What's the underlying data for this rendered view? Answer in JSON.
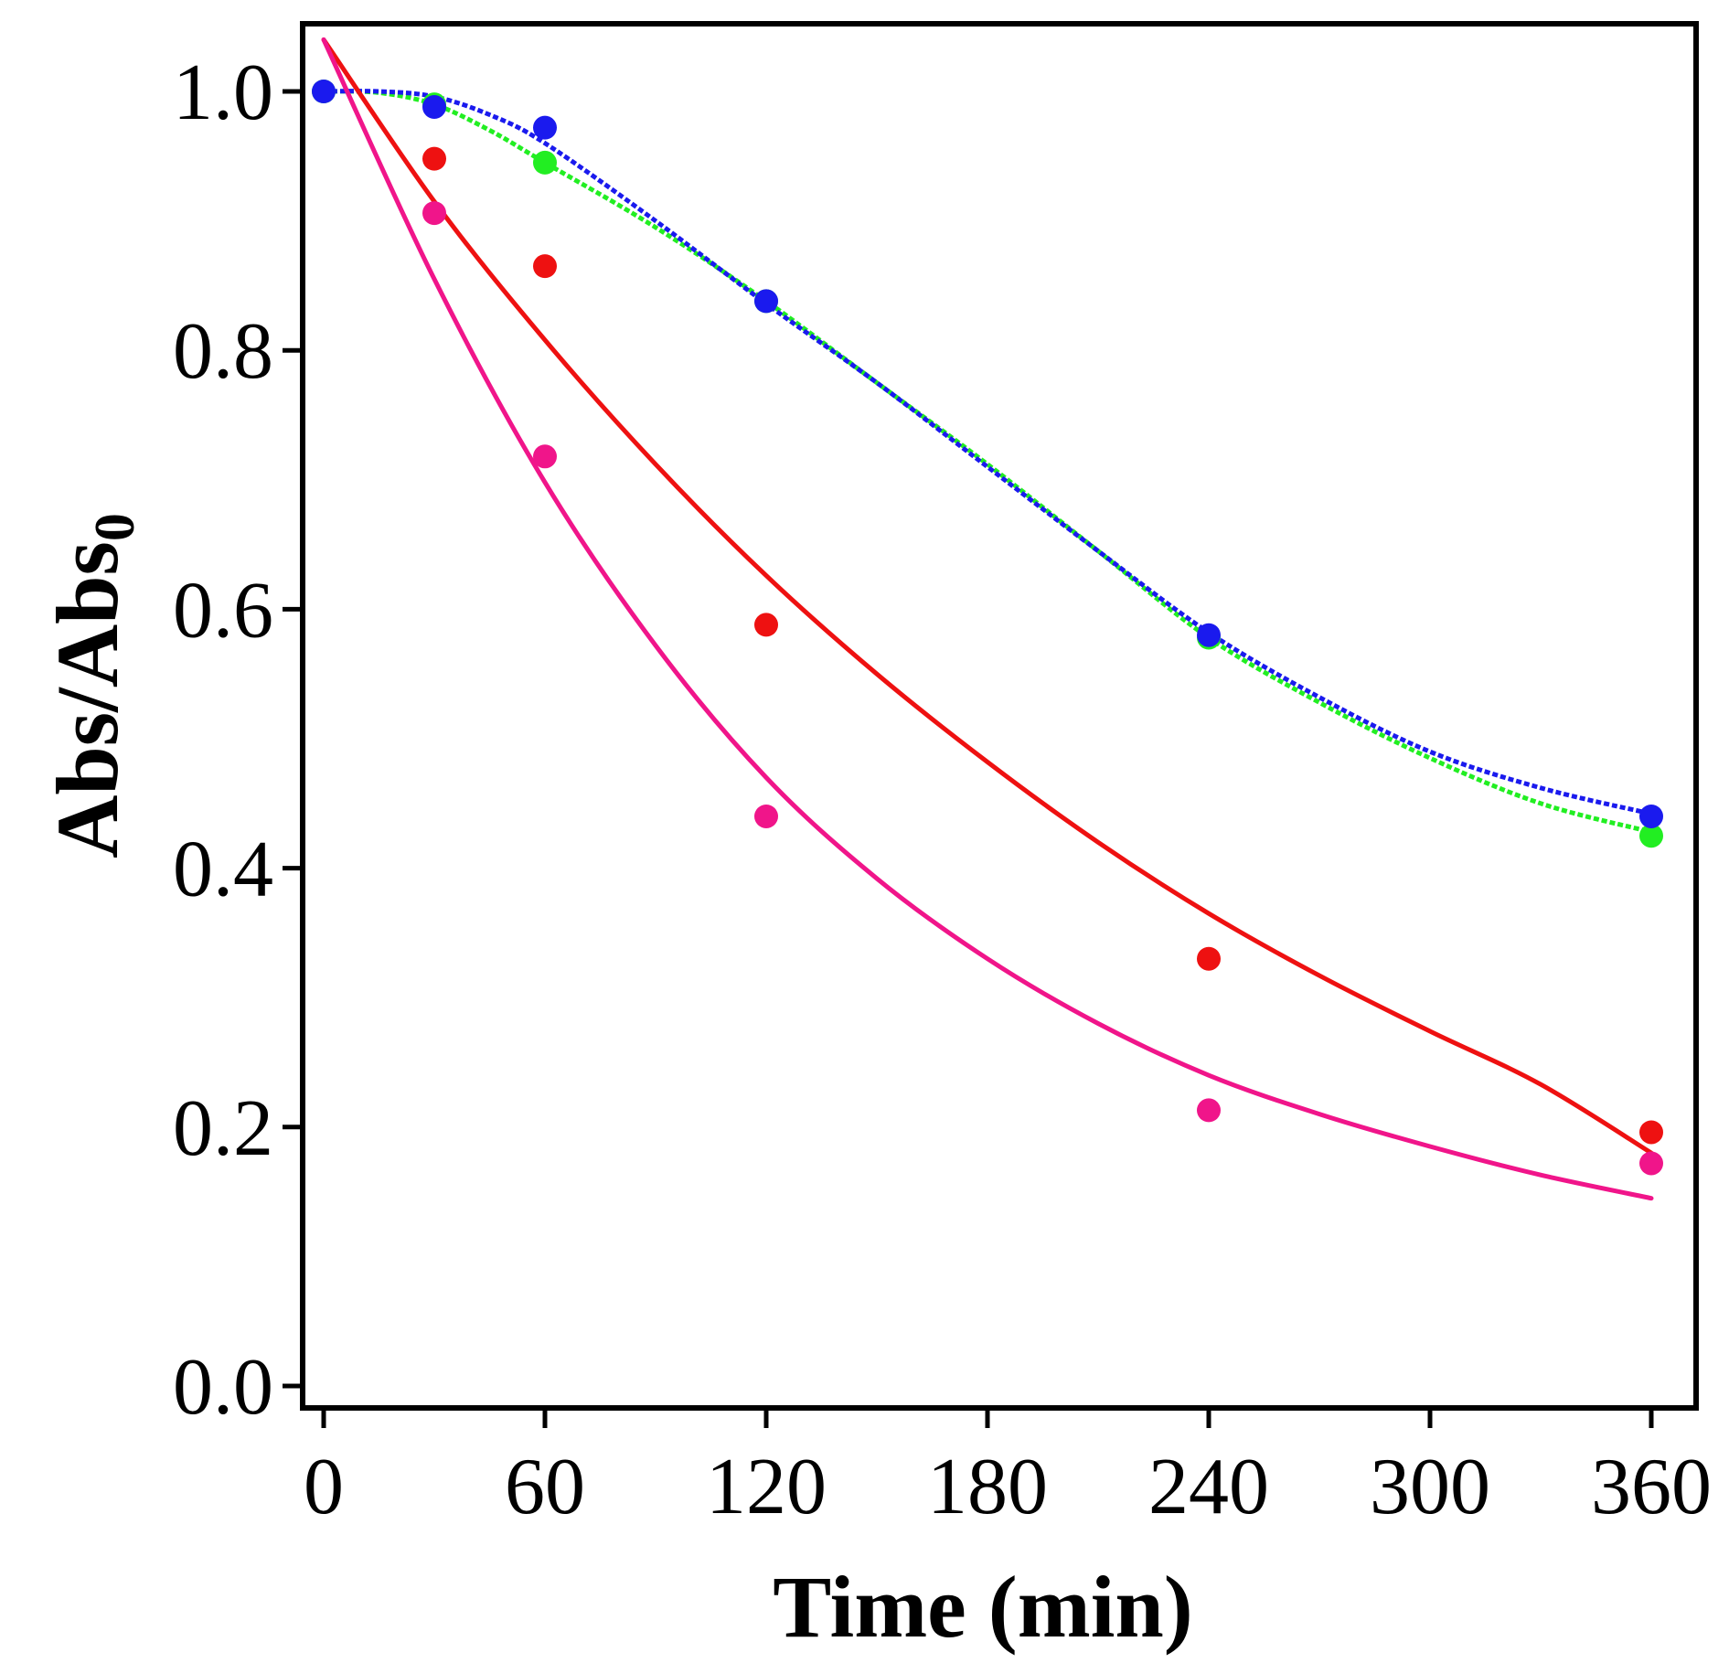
{
  "chart_data": {
    "type": "scatter",
    "title": "",
    "xlabel": "Time (min)",
    "ylabel_main": "Abs/Abs",
    "ylabel_subscript": "0",
    "xlim": [
      -3,
      375
    ],
    "ylim": [
      -0.02,
      1.05
    ],
    "xticks": [
      0,
      60,
      120,
      180,
      240,
      300,
      360
    ],
    "xtick_labels": [
      "0",
      "60",
      "120",
      "180",
      "240",
      "300",
      "360"
    ],
    "yticks": [
      0.0,
      0.2,
      0.4,
      0.6,
      0.8,
      1.0
    ],
    "ytick_labels": [
      "0.0",
      "0.2",
      "0.4",
      "0.6",
      "0.8",
      "1.0"
    ],
    "grid": false,
    "series": [
      {
        "name": "green",
        "color": "#22ee22",
        "line_style": "dashed",
        "points": [
          [
            0,
            1.0
          ],
          [
            30,
            0.99
          ],
          [
            60,
            0.945
          ],
          [
            120,
            0.838
          ],
          [
            240,
            0.578
          ],
          [
            360,
            0.425
          ]
        ],
        "fit": [
          [
            0,
            1.0
          ],
          [
            15,
            0.999
          ],
          [
            30,
            0.99
          ],
          [
            45,
            0.97
          ],
          [
            60,
            0.945
          ],
          [
            90,
            0.895
          ],
          [
            120,
            0.838
          ],
          [
            150,
            0.775
          ],
          [
            180,
            0.712
          ],
          [
            210,
            0.645
          ],
          [
            240,
            0.578
          ],
          [
            270,
            0.528
          ],
          [
            300,
            0.485
          ],
          [
            330,
            0.45
          ],
          [
            360,
            0.428
          ]
        ]
      },
      {
        "name": "blue",
        "color": "#1a1aee",
        "line_style": "dashed",
        "points": [
          [
            0,
            1.0
          ],
          [
            30,
            0.988
          ],
          [
            60,
            0.972
          ],
          [
            120,
            0.838
          ],
          [
            240,
            0.58
          ],
          [
            360,
            0.44
          ]
        ],
        "fit": [
          [
            0,
            1.0
          ],
          [
            15,
            1.0
          ],
          [
            30,
            0.996
          ],
          [
            45,
            0.982
          ],
          [
            60,
            0.96
          ],
          [
            90,
            0.9
          ],
          [
            120,
            0.836
          ],
          [
            150,
            0.775
          ],
          [
            180,
            0.71
          ],
          [
            210,
            0.645
          ],
          [
            240,
            0.582
          ],
          [
            270,
            0.532
          ],
          [
            300,
            0.49
          ],
          [
            330,
            0.462
          ],
          [
            360,
            0.442
          ]
        ]
      },
      {
        "name": "red",
        "color": "#ee1111",
        "line_style": "solid",
        "points": [
          [
            30,
            0.948
          ],
          [
            60,
            0.865
          ],
          [
            120,
            0.588
          ],
          [
            240,
            0.33
          ],
          [
            360,
            0.196
          ]
        ],
        "fit": [
          [
            0,
            1.04
          ],
          [
            30,
            0.915
          ],
          [
            60,
            0.808
          ],
          [
            90,
            0.712
          ],
          [
            120,
            0.626
          ],
          [
            150,
            0.55
          ],
          [
            180,
            0.482
          ],
          [
            210,
            0.42
          ],
          [
            240,
            0.365
          ],
          [
            270,
            0.317
          ],
          [
            300,
            0.274
          ],
          [
            330,
            0.233
          ],
          [
            360,
            0.18
          ]
        ]
      },
      {
        "name": "pink",
        "color": "#f0158a",
        "line_style": "solid",
        "points": [
          [
            30,
            0.906
          ],
          [
            60,
            0.718
          ],
          [
            120,
            0.44
          ],
          [
            240,
            0.213
          ],
          [
            360,
            0.172
          ]
        ],
        "fit": [
          [
            0,
            1.04
          ],
          [
            30,
            0.855
          ],
          [
            60,
            0.698
          ],
          [
            90,
            0.572
          ],
          [
            120,
            0.47
          ],
          [
            150,
            0.392
          ],
          [
            180,
            0.33
          ],
          [
            210,
            0.28
          ],
          [
            240,
            0.24
          ],
          [
            270,
            0.21
          ],
          [
            300,
            0.185
          ],
          [
            330,
            0.163
          ],
          [
            360,
            0.145
          ]
        ]
      }
    ]
  }
}
